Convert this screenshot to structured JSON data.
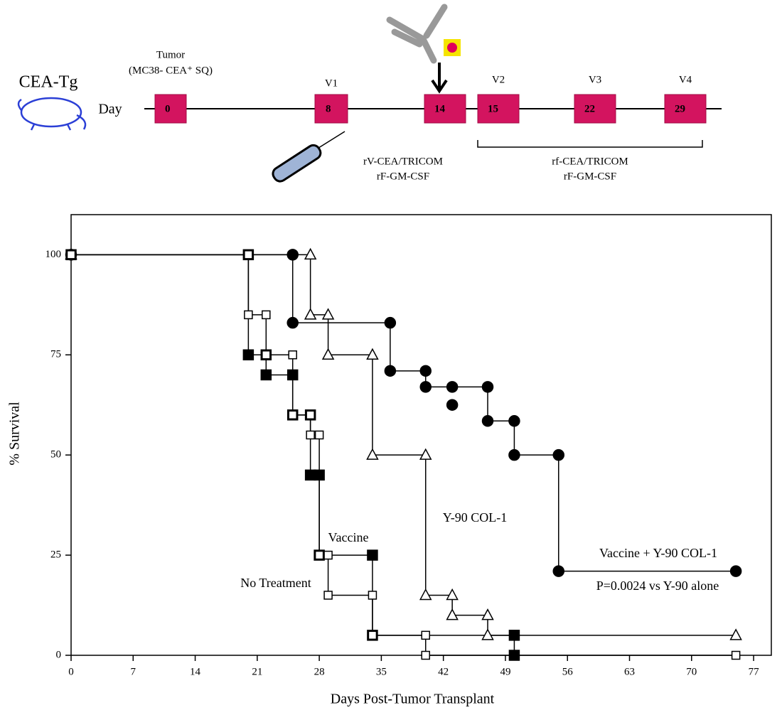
{
  "schematic": {
    "host": "CEA-Tg",
    "day_label": "Day",
    "tumor": "Tumor",
    "tumor_line": "(MC38- CEA⁺ SQ)",
    "days": [
      "0",
      "8",
      "14",
      "15",
      "22",
      "29"
    ],
    "visits": [
      "V1",
      "V2",
      "V3",
      "V4"
    ],
    "prime": [
      "rV-CEA/TRICOM",
      "rF-GM-CSF"
    ],
    "boost": [
      "rf-CEA/TRICOM",
      "rF-GM-CSF"
    ]
  },
  "chart_data": {
    "type": "line",
    "xlabel": "Days Post-Tumor Transplant",
    "ylabel": "% Survival",
    "xlim": [
      0,
      79
    ],
    "xticks": [
      0,
      7,
      14,
      21,
      28,
      35,
      42,
      49,
      56,
      63,
      70,
      77
    ],
    "ylim": [
      0,
      110
    ],
    "yticks": [
      0,
      25,
      50,
      75,
      100
    ],
    "annotation": "P=0.0024 vs Y-90 alone",
    "series": [
      {
        "name": "Vaccine + Y-90 COL-1",
        "color": "#000000",
        "marker": "circle",
        "filled": true,
        "x": [
          0,
          25,
          25,
          36,
          36,
          40,
          40,
          43,
          47,
          47,
          50,
          50,
          55,
          55,
          75,
          43,
          43
        ],
        "values": [
          100,
          100,
          83,
          83,
          71,
          71,
          67,
          67,
          67,
          58.5,
          58.5,
          50,
          50,
          21,
          21,
          null,
          62.5
        ]
      },
      {
        "name": "Y-90 COL-1",
        "color": "#000000",
        "marker": "triangle",
        "filled": false,
        "x": [
          0,
          27,
          27,
          29,
          29,
          34,
          34,
          40,
          40,
          43,
          43,
          47,
          47,
          75
        ],
        "values": [
          100,
          100,
          85,
          85,
          75,
          75,
          50,
          50,
          15,
          15,
          10,
          10,
          5,
          5
        ]
      },
      {
        "name": "Vaccine",
        "color": "#000000",
        "marker": "square",
        "filled": true,
        "x": [
          0,
          20,
          20,
          22,
          22,
          25,
          25,
          27,
          27,
          28,
          28,
          34,
          34,
          50,
          50
        ],
        "values": [
          100,
          100,
          75,
          75,
          70,
          70,
          60,
          60,
          45,
          45,
          25,
          25,
          5,
          5,
          0
        ]
      },
      {
        "name": "No Treatment",
        "color": "#000000",
        "marker": "square",
        "filled": false,
        "x": [
          0,
          20,
          20,
          22,
          22,
          25,
          25,
          27,
          27,
          28,
          28,
          29,
          29,
          34,
          34,
          40,
          40,
          75
        ],
        "values": [
          100,
          100,
          85,
          85,
          75,
          75,
          60,
          60,
          55,
          55,
          25,
          25,
          15,
          15,
          5,
          5,
          0,
          0
        ]
      }
    ]
  }
}
